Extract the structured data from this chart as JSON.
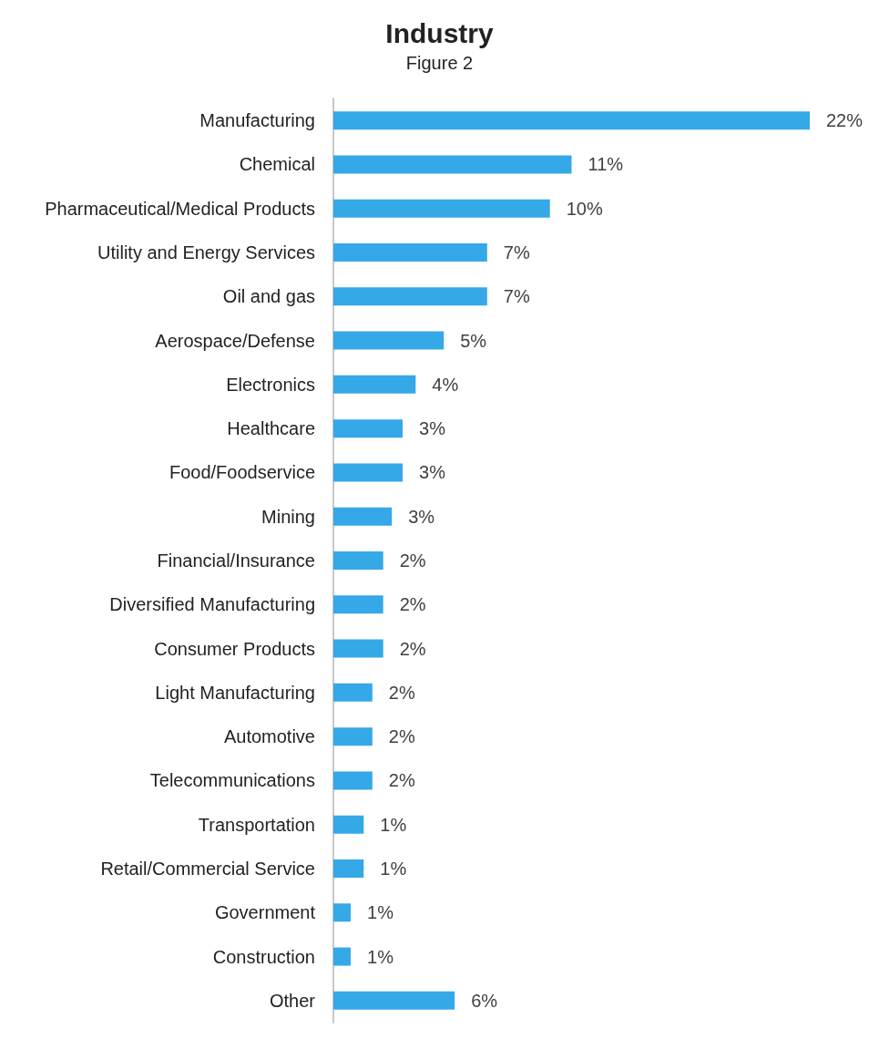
{
  "chart_data": {
    "type": "bar",
    "orientation": "horizontal",
    "title": "Industry",
    "subtitle": "Figure 2",
    "categories": [
      "Manufacturing",
      "Chemical",
      "Pharmaceutical/Medical Products",
      "Utility and Energy Services",
      "Oil and gas",
      "Aerospace/Defense",
      "Electronics",
      "Healthcare",
      "Food/Foodservice",
      "Mining",
      "Financial/Insurance",
      "Diversified Manufacturing",
      "Consumer Products",
      "Light Manufacturing",
      "Automotive",
      "Telecommunications",
      "Transportation",
      "Retail/Commercial Service",
      "Government",
      "Construction",
      "Other"
    ],
    "values": [
      22.0,
      11.0,
      10.0,
      7.1,
      7.1,
      5.1,
      3.8,
      3.2,
      3.2,
      2.7,
      2.3,
      2.3,
      2.3,
      1.8,
      1.8,
      1.8,
      1.4,
      1.4,
      0.8,
      0.8,
      5.6
    ],
    "value_labels": [
      "22%",
      "11%",
      "10%",
      "7%",
      "7%",
      "5%",
      "4%",
      "3%",
      "3%",
      "3%",
      "2%",
      "2%",
      "2%",
      "2%",
      "2%",
      "2%",
      "1%",
      "1%",
      "1%",
      "1%",
      "6%"
    ],
    "color": "#35a8e8"
  }
}
